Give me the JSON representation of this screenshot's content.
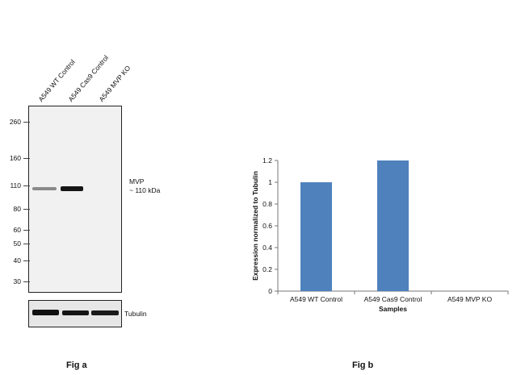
{
  "fig_a": {
    "lane_labels": [
      "A549 WT Control",
      "A549 Cas9 Control",
      "A549 MVP KO"
    ],
    "mw_markers": [
      {
        "label": "260",
        "kda": 260
      },
      {
        "label": "160",
        "kda": 160
      },
      {
        "label": "110",
        "kda": 110
      },
      {
        "label": "80",
        "kda": 80
      },
      {
        "label": "60",
        "kda": 60
      },
      {
        "label": "50",
        "kda": 50
      },
      {
        "label": "40",
        "kda": 40
      },
      {
        "label": "30",
        "kda": 30
      }
    ],
    "target_label_line1": "MVP",
    "target_label_line2": "~ 110 kDa",
    "loading_control_label": "Tubulin",
    "caption": "Fig a"
  },
  "fig_b": {
    "caption": "Fig b"
  },
  "chart_data": {
    "type": "bar",
    "categories": [
      "A549 WT Control",
      "A549 Cas9 Control",
      "A549 MVP KO"
    ],
    "values": [
      1.0,
      1.2,
      0.0
    ],
    "xlabel": "Samples",
    "ylabel": "Expression  normalized to Tubulin",
    "ylim": [
      0,
      1.2
    ],
    "yticks": [
      0,
      0.2,
      0.4,
      0.6,
      0.8,
      1,
      1.2
    ],
    "ytick_labels": [
      "0",
      "0.2",
      "0.4",
      "0.6",
      "0.8",
      "1",
      "1.2"
    ],
    "bar_color": "#4f81bd",
    "grid": false
  }
}
